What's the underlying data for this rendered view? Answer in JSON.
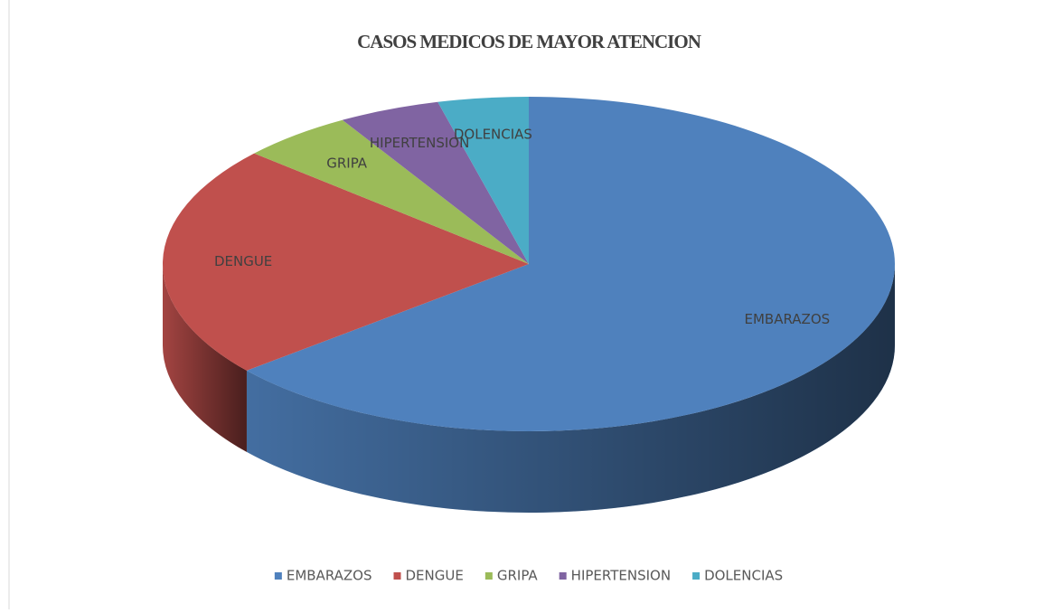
{
  "chart_data": {
    "type": "pie",
    "title": "CASOS MEDICOS DE MAYOR ATENCION",
    "categories": [
      "EMBARAZOS",
      "DENGUE",
      "GRIPA",
      "HIPERTENSION",
      "DOLENCIAS"
    ],
    "values": [
      64,
      22.5,
      5,
      4.5,
      4
    ],
    "colors": [
      "#4f81bd",
      "#c0504d",
      "#9bbb59",
      "#8064a2",
      "#4bacc6"
    ],
    "legend": "bottom"
  }
}
